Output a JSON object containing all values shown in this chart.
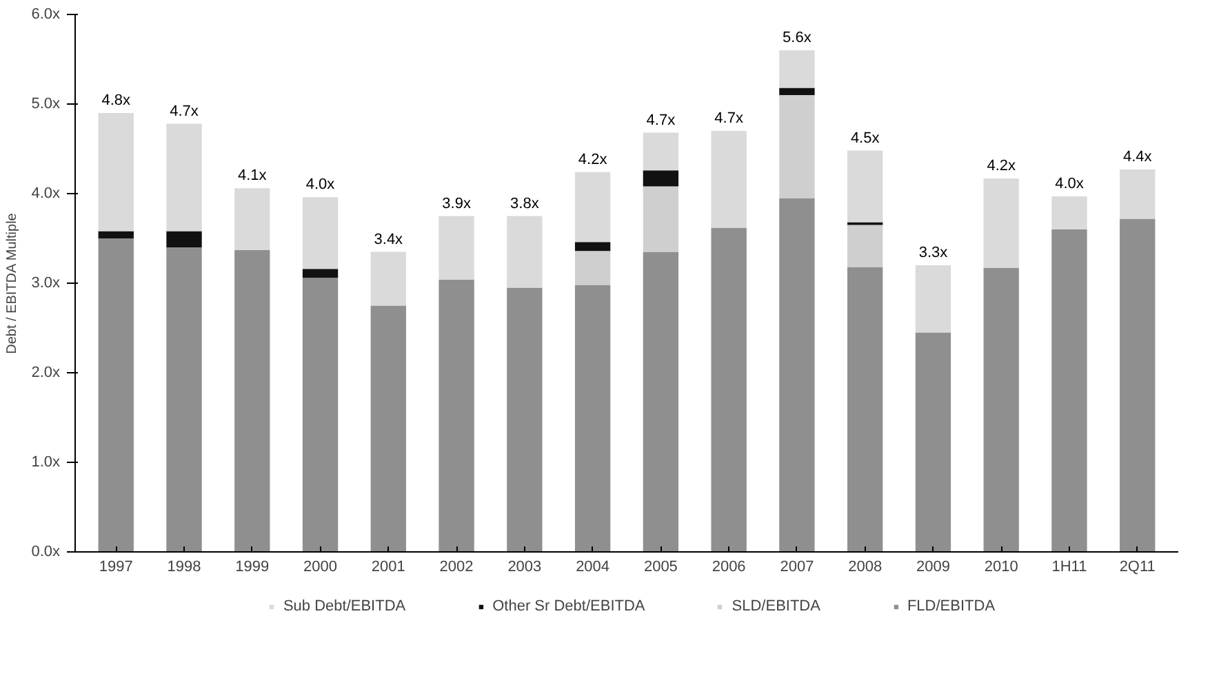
{
  "chart_data": {
    "type": "bar",
    "stacked": true,
    "ylabel": "Debt / EBITDA Multiple",
    "categories": [
      "1997",
      "1998",
      "1999",
      "2000",
      "2001",
      "2002",
      "2003",
      "2004",
      "2005",
      "2006",
      "2007",
      "2008",
      "2009",
      "2010",
      "1H11",
      "2Q11"
    ],
    "series": [
      {
        "name": "FLD/EBITDA",
        "color": "#8f8f8f",
        "values": [
          3.5,
          3.4,
          3.37,
          3.06,
          2.75,
          3.04,
          2.95,
          2.98,
          3.35,
          3.62,
          3.95,
          3.18,
          2.45,
          3.17,
          3.6,
          3.72
        ]
      },
      {
        "name": "SLD/EBITDA",
        "color": "#cfcfcf",
        "values": [
          0,
          0,
          0,
          0,
          0,
          0,
          0,
          0.38,
          0.73,
          0,
          1.15,
          0.47,
          0,
          0,
          0,
          0
        ]
      },
      {
        "name": "Other Sr Debt/EBITDA",
        "color": "#111111",
        "values": [
          0.08,
          0.18,
          0,
          0.1,
          0,
          0,
          0,
          0.1,
          0.18,
          0,
          0.08,
          0.03,
          0,
          0,
          0,
          0
        ]
      },
      {
        "name": "Sub Debt/EBITDA",
        "color": "#dadada",
        "values": [
          1.32,
          1.2,
          0.69,
          0.8,
          0.6,
          0.71,
          0.8,
          0.78,
          0.42,
          1.08,
          0.42,
          0.8,
          0.75,
          1.0,
          0.37,
          0.55
        ]
      }
    ],
    "totals": [
      "4.8x",
      "4.7x",
      "4.1x",
      "4.0x",
      "3.4x",
      "3.9x",
      "3.8x",
      "4.2x",
      "4.7x",
      "4.7x",
      "5.6x",
      "4.5x",
      "3.3x",
      "4.2x",
      "4.0x",
      "4.4x"
    ],
    "ylim": [
      0,
      6
    ],
    "yticks": [
      {
        "value": 0,
        "label": "0.0x"
      },
      {
        "value": 1,
        "label": "1.0x"
      },
      {
        "value": 2,
        "label": "2.0x"
      },
      {
        "value": 3,
        "label": "3.0x"
      },
      {
        "value": 4,
        "label": "4.0x"
      },
      {
        "value": 5,
        "label": "5.0x"
      },
      {
        "value": 6,
        "label": "6.0x"
      }
    ],
    "grid": false,
    "legend": "bottom"
  }
}
